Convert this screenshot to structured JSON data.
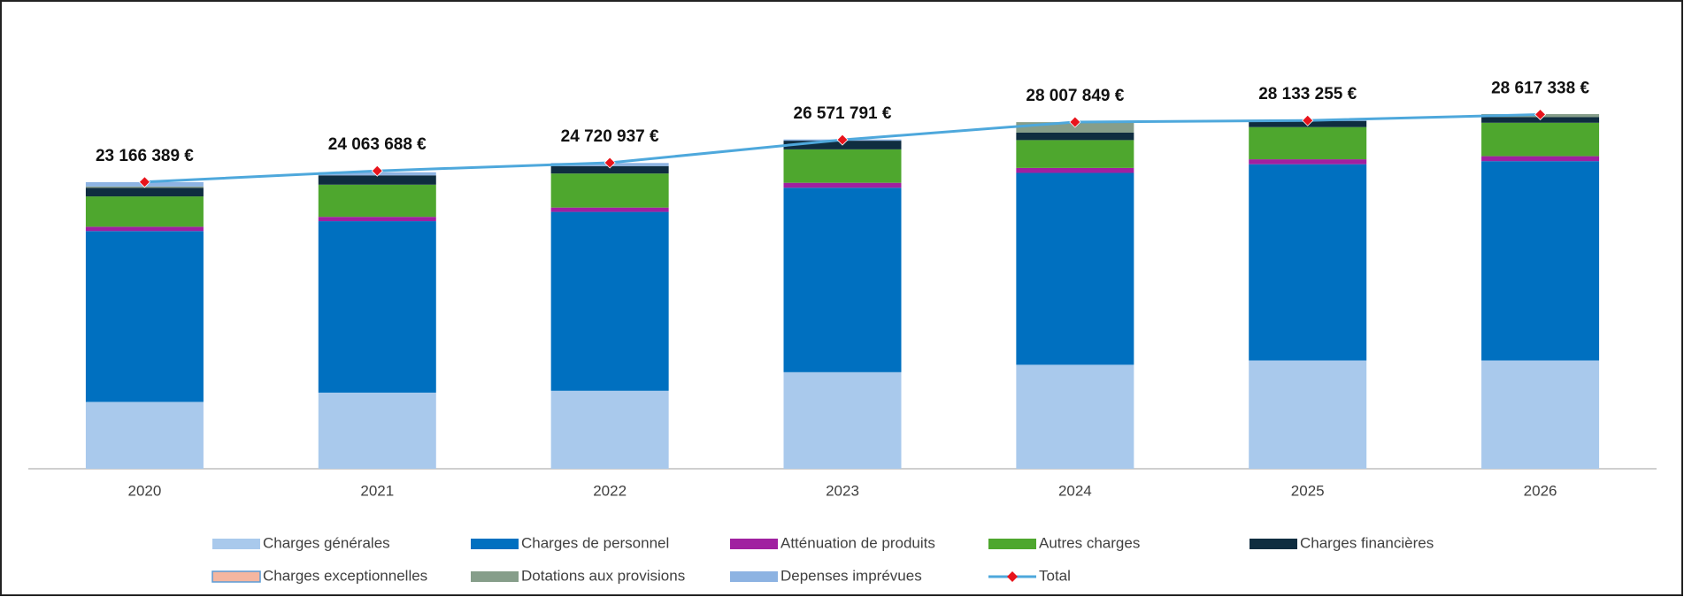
{
  "chart_data": {
    "type": "bar",
    "stacked": true,
    "categories": [
      "2020",
      "2021",
      "2022",
      "2023",
      "2024",
      "2025",
      "2026"
    ],
    "series": [
      {
        "name": "Charges générales",
        "color": "#a9c9ec",
        "values": [
          5400000,
          6150000,
          6300000,
          7800000,
          8400000,
          8750000,
          8750000
        ]
      },
      {
        "name": "Charges de personnel",
        "color": "#0070c0",
        "values": [
          13800000,
          13850000,
          14450000,
          14900000,
          15500000,
          15850000,
          16100000
        ]
      },
      {
        "name": "Atténuation de produits",
        "color": "#a020a0",
        "values": [
          350000,
          350000,
          350000,
          400000,
          400000,
          400000,
          400000
        ]
      },
      {
        "name": "Autres charges",
        "color": "#4ea72e",
        "values": [
          2450000,
          2600000,
          2750000,
          2700000,
          2250000,
          2600000,
          2700000
        ]
      },
      {
        "name": "Charges financières",
        "color": "#0f2d40",
        "values": [
          700000,
          750000,
          600000,
          700000,
          600000,
          500000,
          450000
        ]
      },
      {
        "name": "Charges exceptionnelles",
        "color": "#f4b6a0",
        "values": [
          0,
          0,
          0,
          0,
          0,
          0,
          0
        ]
      },
      {
        "name": "Dotations aux provisions",
        "color": "#869e8a",
        "values": [
          100000,
          0,
          0,
          0,
          850000,
          0,
          250000
        ]
      },
      {
        "name": "Depenses imprévues",
        "color": "#8db3e2",
        "values": [
          350000,
          250000,
          250000,
          100000,
          0,
          50000,
          0
        ]
      },
      {
        "name": "Total",
        "type": "line",
        "color": "#4ea8dc",
        "marker_color": "#e8141c",
        "values": [
          23166389,
          24063688,
          24720937,
          26571791,
          28007849,
          28133255,
          28617338
        ],
        "value_labels": [
          "23 166 389 €",
          "24 063 688 €",
          "24 720 937 €",
          "26 571 791 €",
          "28 007 849 €",
          "28 133 255 €",
          "28 617 338 €"
        ]
      }
    ]
  }
}
